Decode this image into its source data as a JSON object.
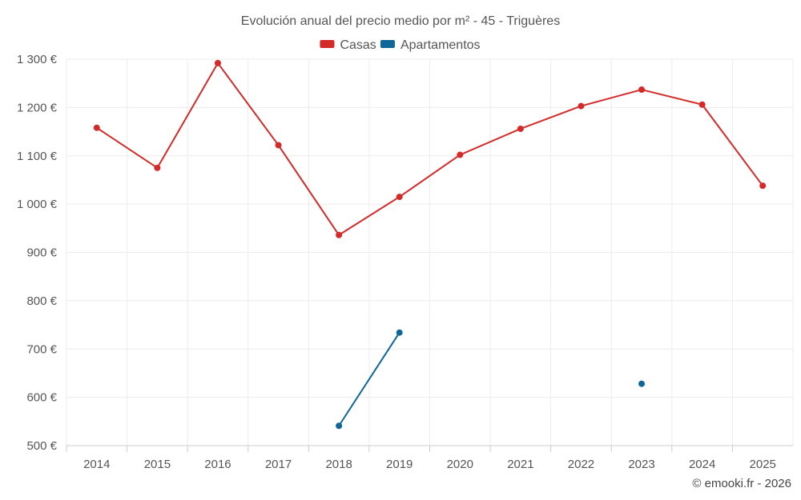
{
  "chart_data": {
    "type": "line",
    "title": "Evolución anual del precio medio por m² - 45 - Triguères",
    "xlabel": "",
    "ylabel": "",
    "categories": [
      "2014",
      "2015",
      "2016",
      "2017",
      "2018",
      "2019",
      "2020",
      "2021",
      "2022",
      "2023",
      "2024",
      "2025"
    ],
    "ylim": [
      500,
      1300
    ],
    "yticks": [
      500,
      600,
      700,
      800,
      900,
      1000,
      1100,
      1200,
      1300
    ],
    "ytick_labels": [
      "500 €",
      "600 €",
      "700 €",
      "800 €",
      "900 €",
      "1 000 €",
      "1 100 €",
      "1 200 €",
      "1 300 €"
    ],
    "legend_position": "top-center",
    "grid": true,
    "series": [
      {
        "name": "Casas",
        "color": "#d42a2a",
        "values": [
          1158,
          1075,
          1292,
          1122,
          936,
          1015,
          1102,
          1156,
          1203,
          1237,
          1206,
          1038
        ]
      },
      {
        "name": "Apartamentos",
        "color": "#0e6699",
        "values": [
          null,
          null,
          null,
          null,
          541,
          734,
          null,
          null,
          null,
          628,
          null,
          null
        ]
      }
    ]
  },
  "credit": "© emooki.fr - 2026"
}
